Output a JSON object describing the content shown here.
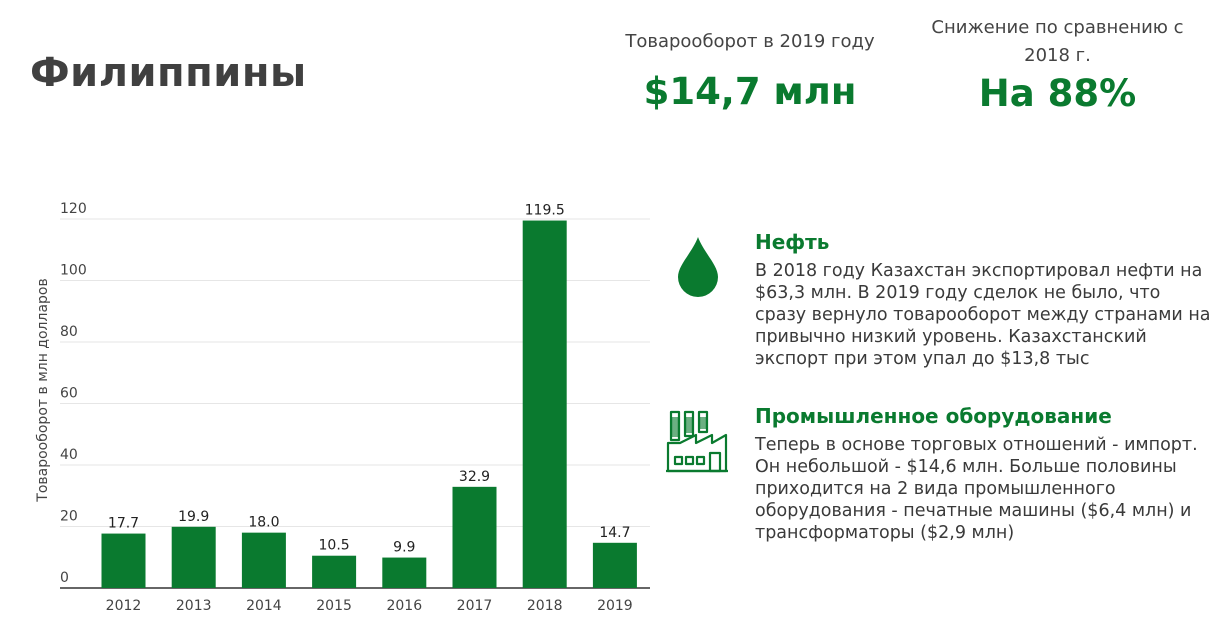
{
  "header": {
    "country": "Филиппины",
    "turnover_label": "Товарооборот в 2019 году",
    "turnover_value": "$14,7 млн",
    "decline_label": "Снижение по сравнению с 2018 г.",
    "decline_value": "На 88%"
  },
  "chart_data": {
    "type": "bar",
    "categories": [
      "2012",
      "2013",
      "2014",
      "2015",
      "2016",
      "2017",
      "2018",
      "2019"
    ],
    "values": [
      17.7,
      19.9,
      18.0,
      10.5,
      9.9,
      32.9,
      119.5,
      14.7
    ],
    "value_labels": [
      "17.7",
      "19.9",
      "18.0",
      "10.5",
      "9.9",
      "32.9",
      "119.5",
      "14.7"
    ],
    "ylabel": "Товарооборот в млн долларов",
    "yticks": [
      "0",
      "20",
      "40",
      "60",
      "80",
      "100",
      "120"
    ],
    "ylim": [
      0,
      120
    ],
    "grid": true,
    "bar_color": "#0a7a2f"
  },
  "sections": [
    {
      "icon": "oil-drop-icon",
      "title": "Нефть",
      "text": "В 2018 году Казахстан экспортировал нефти на $63,3 млн. В 2019 году сделок не было, что сразу вернуло товарооборот между странами на привычно низкий уровень. Казахстанский экспорт при этом упал до $13,8 тыс"
    },
    {
      "icon": "factory-icon",
      "title": "Промышленное оборудование",
      "text": "Теперь в основе торговых отношений - импорт. Он небольшой - $14,6 млн. Больше половины приходится на 2 вида промышленного оборудования - печатные машины ($6,4 млн) и трансформаторы ($2,9 млн)"
    }
  ],
  "colors": {
    "accent": "#0a7a2f",
    "title": "#404040"
  }
}
